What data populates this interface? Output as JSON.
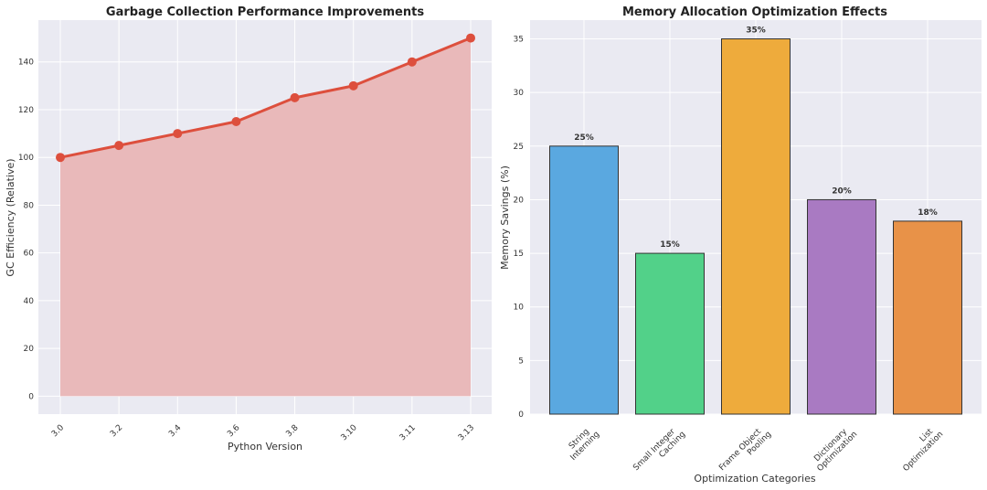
{
  "chart_data": [
    {
      "type": "area",
      "title": "Garbage Collection Performance Improvements",
      "xlabel": "Python Version",
      "ylabel": "GC Efficiency (Relative)",
      "categories": [
        "3.0",
        "3.2",
        "3.4",
        "3.6",
        "3.8",
        "3.10",
        "3.11",
        "3.13"
      ],
      "values": [
        100,
        105,
        110,
        115,
        125,
        130,
        140,
        150
      ],
      "ylim": [
        -7.5,
        157.5
      ],
      "yticks": [
        0,
        20,
        40,
        60,
        80,
        100,
        120,
        140
      ],
      "grid": true,
      "colors": {
        "line": "#dd4f3d",
        "fill": "#e9b9ba",
        "plot_bg": "#eaeaf2"
      }
    },
    {
      "type": "bar",
      "title": "Memory Allocation Optimization Effects",
      "xlabel": "Optimization Categories",
      "ylabel": "Memory Savings (%)",
      "categories": [
        [
          "String",
          "Interning"
        ],
        [
          "Small Integer",
          "Caching"
        ],
        [
          "Frame Object",
          "Pooling"
        ],
        [
          "Dictionary",
          "Optimization"
        ],
        [
          "List",
          "Optimization"
        ]
      ],
      "values": [
        25,
        15,
        35,
        20,
        18
      ],
      "data_labels": [
        "25%",
        "15%",
        "35%",
        "20%",
        "18%"
      ],
      "ylim": [
        0,
        36.75
      ],
      "yticks": [
        0,
        5,
        10,
        15,
        20,
        25,
        30,
        35
      ],
      "grid": true,
      "colors": {
        "bars": [
          "#5aa8e0",
          "#52d189",
          "#eeab3c",
          "#a97ac2",
          "#e89248"
        ],
        "plot_bg": "#eaeaf2"
      }
    }
  ]
}
